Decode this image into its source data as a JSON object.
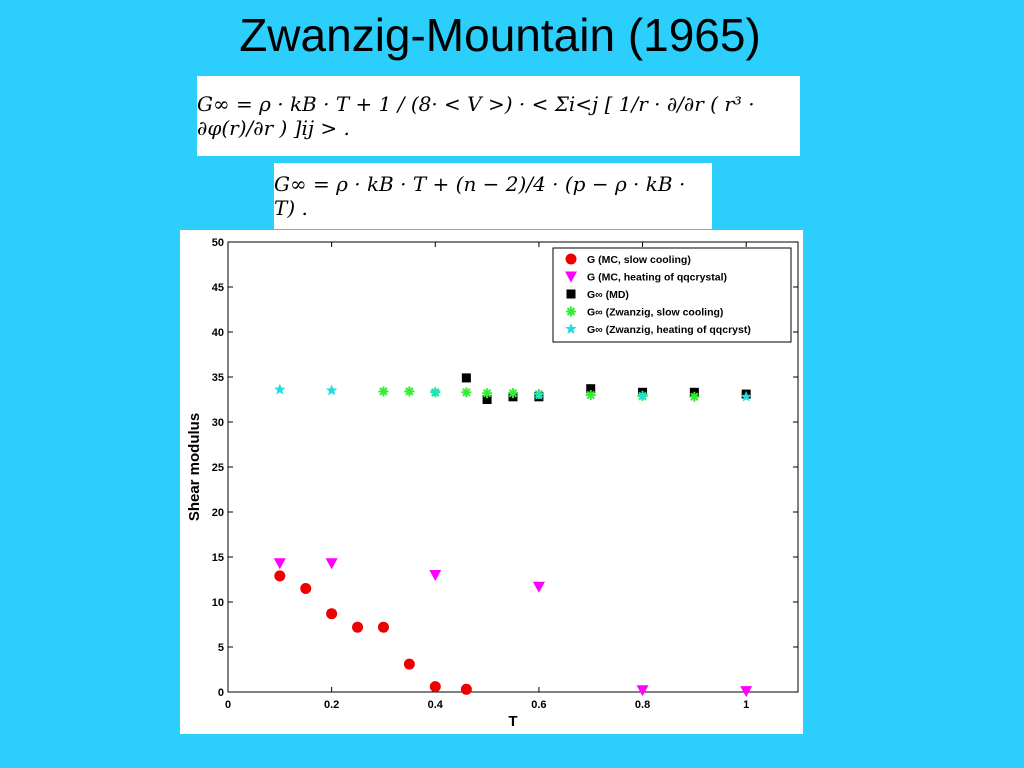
{
  "slide": {
    "title": "Zwanzig-Mountain (1965)",
    "formula_1": "G∞ = ρ · kB · T + 1 / (8· < V >) · < Σi<j [ 1/r · ∂/∂r ( r³ · ∂φ(r)/∂r ) ]ij > .",
    "formula_2": "G∞ = ρ · kB · T + (n − 2)/4 · (p − ρ · kB · T) ."
  },
  "chart_data": {
    "type": "scatter",
    "title": "",
    "xlabel": "T",
    "ylabel": "Shear modulus",
    "xlim": [
      0,
      1.1
    ],
    "ylim": [
      0,
      50
    ],
    "xticks": [
      0,
      0.2,
      0.4,
      0.6,
      0.8,
      1
    ],
    "xtick_labels": [
      "0",
      "0.2",
      "0.4",
      "0.6",
      "0.8",
      "1"
    ],
    "yticks": [
      0,
      5,
      10,
      15,
      20,
      25,
      30,
      35,
      40,
      45,
      50
    ],
    "ytick_labels": [
      "0",
      "5",
      "10",
      "15",
      "20",
      "25",
      "30",
      "35",
      "40",
      "45",
      "50"
    ],
    "grid": false,
    "legend_position": "top-right",
    "series": [
      {
        "name": "G (MC, slow cooling)",
        "marker": "circle",
        "color": "#ee0000",
        "x": [
          0.1,
          0.15,
          0.2,
          0.25,
          0.3,
          0.35,
          0.4,
          0.46
        ],
        "y": [
          12.9,
          11.5,
          8.7,
          7.2,
          7.2,
          3.1,
          0.6,
          0.3
        ]
      },
      {
        "name": "G (MC, heating of qqcrystal)",
        "marker": "triangle-down",
        "color": "#ff00ff",
        "x": [
          0.1,
          0.2,
          0.4,
          0.6,
          0.8,
          1.0
        ],
        "y": [
          14.3,
          14.3,
          13.0,
          11.7,
          0.2,
          0.1
        ]
      },
      {
        "name": "G∞ (MD)",
        "marker": "square",
        "color": "#000000",
        "x": [
          0.46,
          0.5,
          0.55,
          0.6,
          0.7,
          0.8,
          0.9,
          1.0
        ],
        "y": [
          34.9,
          32.5,
          32.8,
          32.8,
          33.7,
          33.3,
          33.3,
          33.1
        ]
      },
      {
        "name": "G∞ (Zwanzig, slow cooling)",
        "marker": "asterisk",
        "color": "#33ee33",
        "x": [
          0.3,
          0.35,
          0.4,
          0.46,
          0.5,
          0.55,
          0.6,
          0.7,
          0.8,
          0.9
        ],
        "y": [
          33.4,
          33.4,
          33.3,
          33.3,
          33.2,
          33.2,
          33.1,
          33.0,
          32.9,
          32.8
        ]
      },
      {
        "name": "G∞ (Zwanzig, heating of qqcryst)",
        "marker": "star",
        "color": "#22dddd",
        "x": [
          0.1,
          0.2,
          0.4,
          0.6,
          0.8,
          1.0
        ],
        "y": [
          33.6,
          33.5,
          33.3,
          33.0,
          32.9,
          32.8
        ]
      }
    ]
  }
}
